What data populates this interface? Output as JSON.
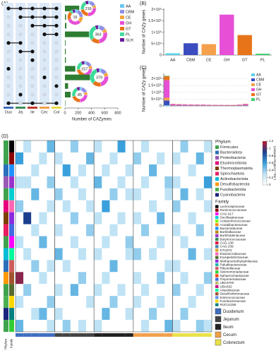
{
  "chart_data": [
    {
      "type": "upset",
      "panel_label": "(A)",
      "sets": [
        "Duo",
        "Jej",
        "Ile",
        "Cec",
        "Col"
      ],
      "set_colors": [
        "#3f6fbf",
        "#3c8f5a",
        "#c0392b",
        "#f0a04b",
        "#e9d84a"
      ],
      "xlabel": "Number of CAZymes",
      "xlim": [
        0,
        800
      ],
      "xticks": [
        0,
        200,
        400,
        600,
        800
      ],
      "bar_color": "#2e7d32",
      "classes": [
        "AA",
        "CBM",
        "CE",
        "GH",
        "GT",
        "PL",
        "SLH"
      ],
      "class_colors": [
        "#6cc6f0",
        "#8f8fe6",
        "#f4a63c",
        "#e64fd6",
        "#e8741a",
        "#3edb9a",
        "#6a1b9a"
      ],
      "rows": [
        {
          "members": [
            1,
            1,
            1,
            1,
            1
          ],
          "count": 216,
          "composition": [
            8,
            30,
            14,
            58,
            46,
            44,
            16
          ]
        },
        {
          "members": [
            0,
            1,
            1,
            1,
            1
          ],
          "count": 16,
          "composition": [
            1,
            3,
            2,
            5,
            3,
            1,
            1
          ]
        },
        {
          "members": [
            0,
            0,
            1,
            1,
            1
          ],
          "count": 22
        },
        {
          "members": [
            0,
            0,
            0,
            1,
            1
          ],
          "count": 363,
          "composition": [
            12,
            40,
            25,
            95,
            60,
            110,
            21
          ]
        },
        {
          "members": [
            1,
            1,
            0,
            0,
            0
          ],
          "count": 9
        },
        {
          "members": [
            0,
            1,
            1,
            0,
            0
          ],
          "count": 12
        },
        {
          "members": [
            0,
            0,
            1,
            0,
            0
          ],
          "count": 14
        },
        {
          "members": [
            1,
            0,
            0,
            0,
            0
          ],
          "count": 157,
          "composition": [
            6,
            22,
            12,
            40,
            35,
            30,
            12
          ]
        },
        {
          "members": [
            0,
            0,
            0,
            1,
            0
          ],
          "count": 379,
          "composition": [
            14,
            45,
            28,
            90,
            62,
            118,
            22
          ]
        },
        {
          "members": [
            0,
            0,
            0,
            0,
            1
          ],
          "count": 48
        },
        {
          "members": [
            0,
            1,
            0,
            0,
            0
          ],
          "count": 85,
          "composition": [
            4,
            12,
            6,
            20,
            18,
            19,
            6
          ]
        },
        {
          "members": [
            1,
            0,
            1,
            0,
            1
          ],
          "count": 6
        }
      ]
    },
    {
      "type": "bar",
      "panel_label": "(B)",
      "ylabel": "Number of CAZy genes",
      "categories": [
        "AA",
        "CBM",
        "CE",
        "GH",
        "GT",
        "PL"
      ],
      "values": [
        8000,
        52000,
        48000,
        178000,
        88000,
        6000
      ],
      "colors": [
        "#5bd3e6",
        "#3b4cc0",
        "#f5a04a",
        "#e64fd6",
        "#e8741a",
        "#3ecf6e"
      ],
      "ylim": [
        0,
        205000
      ],
      "yticks": [
        0,
        {
          "value": 50000,
          "label": "5×10⁴"
        },
        {
          "value": 100000,
          "label": "1×10⁵"
        },
        {
          "value": 150000,
          "label": "1.5×10⁵"
        },
        {
          "value": 200000,
          "label": "2×10⁵"
        }
      ]
    },
    {
      "type": "stacked_bar",
      "panel_label": "(C)",
      "ylabel": "Number of CAZy genes",
      "categories": [
        null,
        null,
        null,
        null,
        null,
        null,
        null,
        null,
        null,
        null,
        null,
        null,
        null,
        null
      ],
      "series": [
        {
          "name": "AA",
          "color": "#5bd3e6",
          "values": [
            5000,
            500,
            400,
            400,
            300,
            300,
            300,
            200,
            200,
            200,
            200,
            200,
            300,
            500
          ]
        },
        {
          "name": "CBM",
          "color": "#3b4cc0",
          "values": [
            35000,
            3000,
            2500,
            2200,
            2000,
            1800,
            1800,
            1500,
            1500,
            1500,
            1400,
            1400,
            1800,
            3000
          ]
        },
        {
          "name": "CE",
          "color": "#f5a04a",
          "values": [
            20000,
            2000,
            1800,
            1600,
            1500,
            1400,
            1300,
            1200,
            1200,
            1100,
            1100,
            1000,
            1300,
            2000
          ]
        },
        {
          "name": "GH",
          "color": "#e64fd6",
          "values": [
            130000,
            7000,
            6000,
            5500,
            5000,
            4800,
            4500,
            4200,
            4000,
            3800,
            3600,
            3500,
            4500,
            7000
          ]
        },
        {
          "name": "GT",
          "color": "#e8741a",
          "values": [
            30000,
            2500,
            2200,
            2000,
            1800,
            1700,
            1600,
            1500,
            1400,
            1300,
            1300,
            1200,
            1500,
            2500
          ]
        },
        {
          "name": "PL",
          "color": "#3ecf6e",
          "values": [
            3000,
            300,
            250,
            200,
            200,
            150,
            150,
            150,
            100,
            100,
            100,
            100,
            150,
            300
          ]
        }
      ],
      "ylim": [
        0,
        240000
      ],
      "yticks": [
        0,
        {
          "value": 50000,
          "label": "5×10⁴"
        },
        {
          "value": 100000,
          "label": "1×10⁵"
        },
        {
          "value": 150000,
          "label": "1.5×10⁵"
        },
        {
          "value": 200000,
          "label": "2×10⁵"
        }
      ],
      "grid": true
    },
    {
      "type": "heatmap",
      "panel_label": "(D)",
      "row_annotation_labels": [
        "Phylum",
        "Family"
      ],
      "phylum_title": "Phylum",
      "phyla": [
        "Firmicutes",
        "Bacteroidota",
        "Proteobacteria",
        "Elusimicrobiota",
        "Thermoplasmatota",
        "Spirochaetota",
        "Actinobacteriota",
        "Desulfobacterota",
        "Fusobacteriota",
        "Cyanobacteria"
      ],
      "phylum_colors": [
        "#3fa34d",
        "#2c6fbb",
        "#9b59b6",
        "#e6007e",
        "#7b3f00",
        "#e91e63",
        "#00bcd4",
        "#ff9800",
        "#4caf50",
        "#1a237e"
      ],
      "family_title": "Family",
      "families": [
        "Lachnospiraceae",
        "Ruminococcaceae",
        "CAG-917",
        "Oscillospiraceae",
        "Acidaminococcaceae",
        "Acutalibacteraceae",
        "Bacteroidaceae",
        "Borkfalkiaceae",
        "Burkholderiaceae",
        "Butyricicoccaceae",
        "CAG-138",
        "CAG-239",
        "DTU072",
        "Elusimicrobiaceae",
        "Erysipelotrichaceae",
        "Methanomethylophilaceae",
        "Paludibacteraceae",
        "Rikenellaceae",
        "Selenomonadaceae",
        "Sphaerochaetaceae",
        "Treponemataceae",
        "UBA3700",
        "UBA932",
        "Atopobiaceae",
        "Desulfovibrionaceae",
        "Enterococcaceae",
        "Fusobacteriaceae",
        "RUG14156"
      ],
      "family_colors": [
        "#000000",
        "#8b0000",
        "#ff00ff",
        "#00ced1",
        "#7cfc00",
        "#ff8c00",
        "#1e90ff",
        "#b8860b",
        "#9932cc",
        "#2e8b57",
        "#dc143c",
        "#4682b4",
        "#daa520",
        "#ff69b4",
        "#556b2f",
        "#8a2be2",
        "#20b2aa",
        "#cd5c5c",
        "#32cd32",
        "#ff4500",
        "#4169e1",
        "#bdb76b",
        "#c71585",
        "#00fa9a",
        "#a0522d",
        "#6495ed",
        "#ffd700",
        "#008080"
      ],
      "regions": [
        "Duodenum",
        "Jejunum",
        "Ileum",
        "Cecum",
        "Colorectum"
      ],
      "region_colors": [
        "#3f6fbf",
        "#444444",
        "#222222",
        "#f0a04b",
        "#e9e24a"
      ],
      "row_phylum": [
        "Firmicutes",
        "Firmicutes",
        "Bacteroidota",
        "Proteobacteria",
        "Firmicutes",
        "Elusimicrobiota",
        "Thermoplasmatota",
        "Spirochaetota",
        "Firmicutes",
        "Actinobacteriota",
        "Bacteroidota",
        "Desulfobacterota",
        "Firmicutes",
        "Fusobacteriota",
        "Cyanobacteria",
        "Firmicutes"
      ],
      "row_family": [
        "Lachnospiraceae",
        "Ruminococcaceae",
        "Bacteroidaceae",
        "Burkholderiaceae",
        "Oscillospiraceae",
        "Elusimicrobiaceae",
        "Methanomethylophilaceae",
        "Treponemataceae",
        "CAG-917",
        "Atopobiaceae",
        "Rikenellaceae",
        "Desulfovibrionaceae",
        "Erysipelotrichaceae",
        "Fusobacteriaceae",
        "RUG14156",
        "Selenomonadaceae"
      ],
      "col_region": [
        "Duodenum",
        "Duodenum",
        "Duodenum",
        "Duodenum",
        "Duodenum",
        "Jejunum",
        "Jejunum",
        "Jejunum",
        "Jejunum",
        "Jejunum",
        "Ileum",
        "Ileum",
        "Ileum",
        "Ileum",
        "Ileum",
        "Cecum",
        "Cecum",
        "Cecum",
        "Cecum",
        "Cecum",
        "Colorectum",
        "Colorectum",
        "Colorectum",
        "Colorectum",
        "Colorectum"
      ],
      "values": [
        [
          0,
          0.3,
          0,
          0,
          0.5,
          0,
          0,
          0.4,
          0,
          0,
          0.3,
          0,
          0,
          0.6,
          0,
          0,
          0.3,
          0,
          0,
          0,
          0,
          0.4,
          0,
          0,
          0.3
        ],
        [
          0.6,
          0,
          0,
          0.3,
          0,
          0.3,
          0,
          0,
          0,
          0.5,
          0,
          0,
          0.3,
          0,
          0,
          0.4,
          0,
          0,
          0.3,
          0,
          0.3,
          0,
          0,
          0.5,
          0
        ],
        [
          0,
          0,
          0.3,
          0,
          0,
          0,
          0.6,
          0,
          0.3,
          0,
          0,
          0.3,
          0,
          0,
          0.3,
          0,
          0,
          0.5,
          0,
          0,
          0,
          0,
          0.3,
          0,
          0
        ],
        [
          0.3,
          0.3,
          0,
          0,
          0.4,
          0,
          0,
          0.3,
          0,
          0,
          0.5,
          0,
          0,
          0.3,
          0,
          0,
          0.3,
          0,
          0,
          0.4,
          0.3,
          0,
          0,
          0,
          0.6
        ],
        [
          0,
          0,
          0.5,
          0,
          0,
          0.4,
          0,
          0,
          0.3,
          0,
          0,
          0,
          0.4,
          0,
          0.3,
          0.3,
          0,
          0,
          0,
          0.3,
          0,
          0.5,
          0,
          0.3,
          0
        ],
        [
          0.4,
          0,
          0,
          0,
          0.3,
          0,
          0.3,
          0,
          0,
          0.3,
          0,
          0.6,
          0,
          0,
          0,
          0,
          0,
          0.3,
          0,
          0,
          0.4,
          0,
          0,
          0,
          0.3
        ],
        [
          0,
          0.9,
          0,
          0.3,
          0,
          0,
          0,
          0.4,
          0,
          0,
          0.3,
          0,
          0,
          0.3,
          0,
          0.3,
          0,
          0,
          0.5,
          0,
          0,
          0,
          0.3,
          0,
          0
        ],
        [
          0,
          0,
          0.3,
          0,
          0,
          0.3,
          0,
          0,
          0,
          0.4,
          0,
          0,
          0.3,
          0,
          0,
          0,
          0.4,
          0,
          0,
          0,
          0.3,
          0,
          0,
          0.4,
          0
        ],
        [
          0.3,
          0,
          0,
          0.5,
          0,
          0,
          0,
          0.3,
          0,
          0,
          0,
          0.3,
          0,
          0,
          0.4,
          0,
          0,
          0,
          0.3,
          0,
          0,
          0.3,
          0,
          0,
          0
        ],
        [
          0,
          0.3,
          0,
          0,
          0,
          0.5,
          0,
          0,
          0.3,
          0,
          0.3,
          0,
          0,
          0,
          0.3,
          0.4,
          0,
          0.3,
          0,
          0,
          0,
          0,
          0.5,
          0,
          0.3
        ],
        [
          0,
          0,
          0.4,
          0,
          0.3,
          0,
          0.3,
          0,
          0,
          0,
          0,
          0,
          0.5,
          0,
          0,
          0,
          0,
          0,
          0,
          0.3,
          0.3,
          0,
          0,
          0,
          0
        ],
        [
          1.1,
          0,
          0,
          0.3,
          0,
          0,
          0,
          0,
          0.4,
          0,
          0,
          0.3,
          0,
          0,
          0,
          0.3,
          0,
          0,
          0.4,
          0,
          0,
          0.3,
          0,
          0,
          0.4
        ],
        [
          0,
          0.4,
          0,
          0,
          0,
          0.3,
          0,
          0.5,
          0,
          0,
          0.3,
          0,
          0,
          0.3,
          0,
          0,
          0.3,
          0,
          0,
          0,
          0.4,
          0,
          0,
          0.3,
          0
        ],
        [
          0.3,
          0,
          0,
          0,
          0.4,
          0,
          0,
          0,
          0,
          0.3,
          0,
          0,
          0.4,
          0,
          0,
          0.3,
          0,
          0,
          0.3,
          0,
          0,
          0,
          0.3,
          0,
          0
        ],
        [
          0,
          0,
          0.3,
          0.5,
          0,
          0.3,
          0,
          0,
          0,
          0,
          0,
          0.5,
          0,
          0,
          0.3,
          0,
          0,
          0.4,
          0,
          0,
          0,
          0.4,
          0,
          0,
          0
        ],
        [
          0.5,
          0,
          0,
          0,
          0.3,
          0,
          0.4,
          0,
          0.3,
          0,
          0.3,
          0,
          0,
          0,
          0,
          0,
          0.3,
          0,
          0,
          0.5,
          0.3,
          0,
          0,
          0.4,
          0.3
        ]
      ],
      "colorbar_title": "Log₁₀ (coding number)",
      "colorscale": [
        "#ffffff",
        "#bfe3f5",
        "#3aa0dc",
        "#1b3f8f",
        "#c0182a"
      ],
      "clim": [
        0,
        1.2
      ],
      "cticks": [
        0,
        0.2,
        0.4,
        0.6,
        0.8,
        1,
        1.2
      ]
    }
  ]
}
